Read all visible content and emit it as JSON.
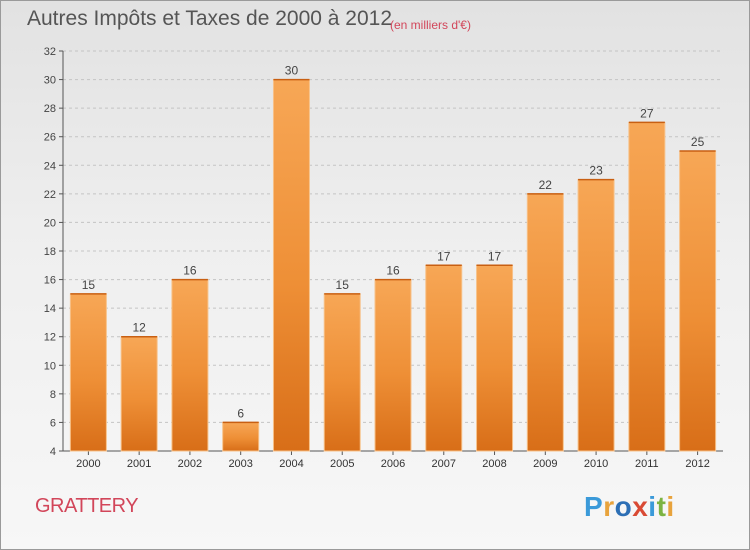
{
  "chart_data": {
    "type": "bar",
    "title": "Autres Impôts et Taxes de 2000 à 2012",
    "subtitle": "(en milliers d'€)",
    "categories": [
      "2000",
      "2001",
      "2002",
      "2003",
      "2004",
      "2005",
      "2006",
      "2007",
      "2008",
      "2009",
      "2010",
      "2011",
      "2012"
    ],
    "values": [
      15,
      12,
      16,
      6,
      30,
      15,
      16,
      17,
      17,
      22,
      23,
      27,
      25
    ],
    "ylim": [
      4,
      32
    ],
    "yticks": [
      4,
      6,
      8,
      10,
      12,
      14,
      16,
      18,
      20,
      22,
      24,
      26,
      28,
      30,
      32
    ],
    "xlabel": "",
    "ylabel": "",
    "grid": "horizontal dashed",
    "bar_color": "#f0913a"
  },
  "commune": "GRATTERY",
  "brand": {
    "letters": [
      "P",
      "r",
      "o",
      "x",
      "i",
      "t",
      "i"
    ],
    "colors": [
      "#3b9ad9",
      "#e8a33c",
      "#2d6fb5",
      "#d94a34",
      "#3b9ad9",
      "#7cb342",
      "#e8a33c"
    ]
  }
}
